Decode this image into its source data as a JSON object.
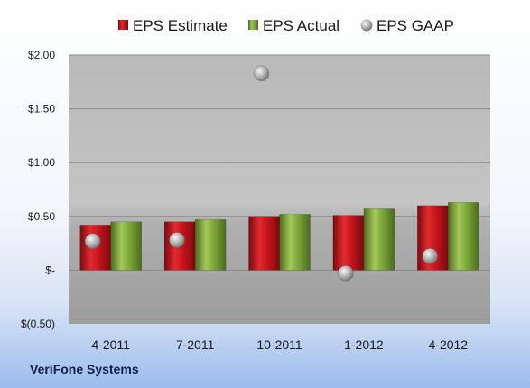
{
  "company_label": "VeriFone Systems",
  "chart_data": {
    "type": "bar",
    "categories": [
      "4-2011",
      "7-2011",
      "10-2011",
      "1-2012",
      "4-2012"
    ],
    "series": [
      {
        "name": "EPS Estimate",
        "kind": "bar",
        "color": "#c8141c",
        "values": [
          0.42,
          0.45,
          0.5,
          0.51,
          0.6
        ]
      },
      {
        "name": "EPS Actual",
        "kind": "bar",
        "color": "#7ea73a",
        "values": [
          0.45,
          0.47,
          0.52,
          0.57,
          0.63
        ]
      },
      {
        "name": "EPS GAAP",
        "kind": "marker",
        "color": "#a3a3a3",
        "values": [
          0.27,
          0.28,
          1.83,
          -0.03,
          0.13
        ]
      }
    ],
    "yticks": [
      {
        "value": 2.0,
        "label": "$2.00"
      },
      {
        "value": 1.5,
        "label": "$1.50"
      },
      {
        "value": 1.0,
        "label": "$1.00"
      },
      {
        "value": 0.5,
        "label": "$0.50"
      },
      {
        "value": 0.0,
        "label": "$-"
      },
      {
        "value": -0.5,
        "label": "$(0.50)"
      }
    ],
    "ylim": [
      -0.5,
      2.0
    ],
    "legend_position": "top",
    "grid": true
  }
}
